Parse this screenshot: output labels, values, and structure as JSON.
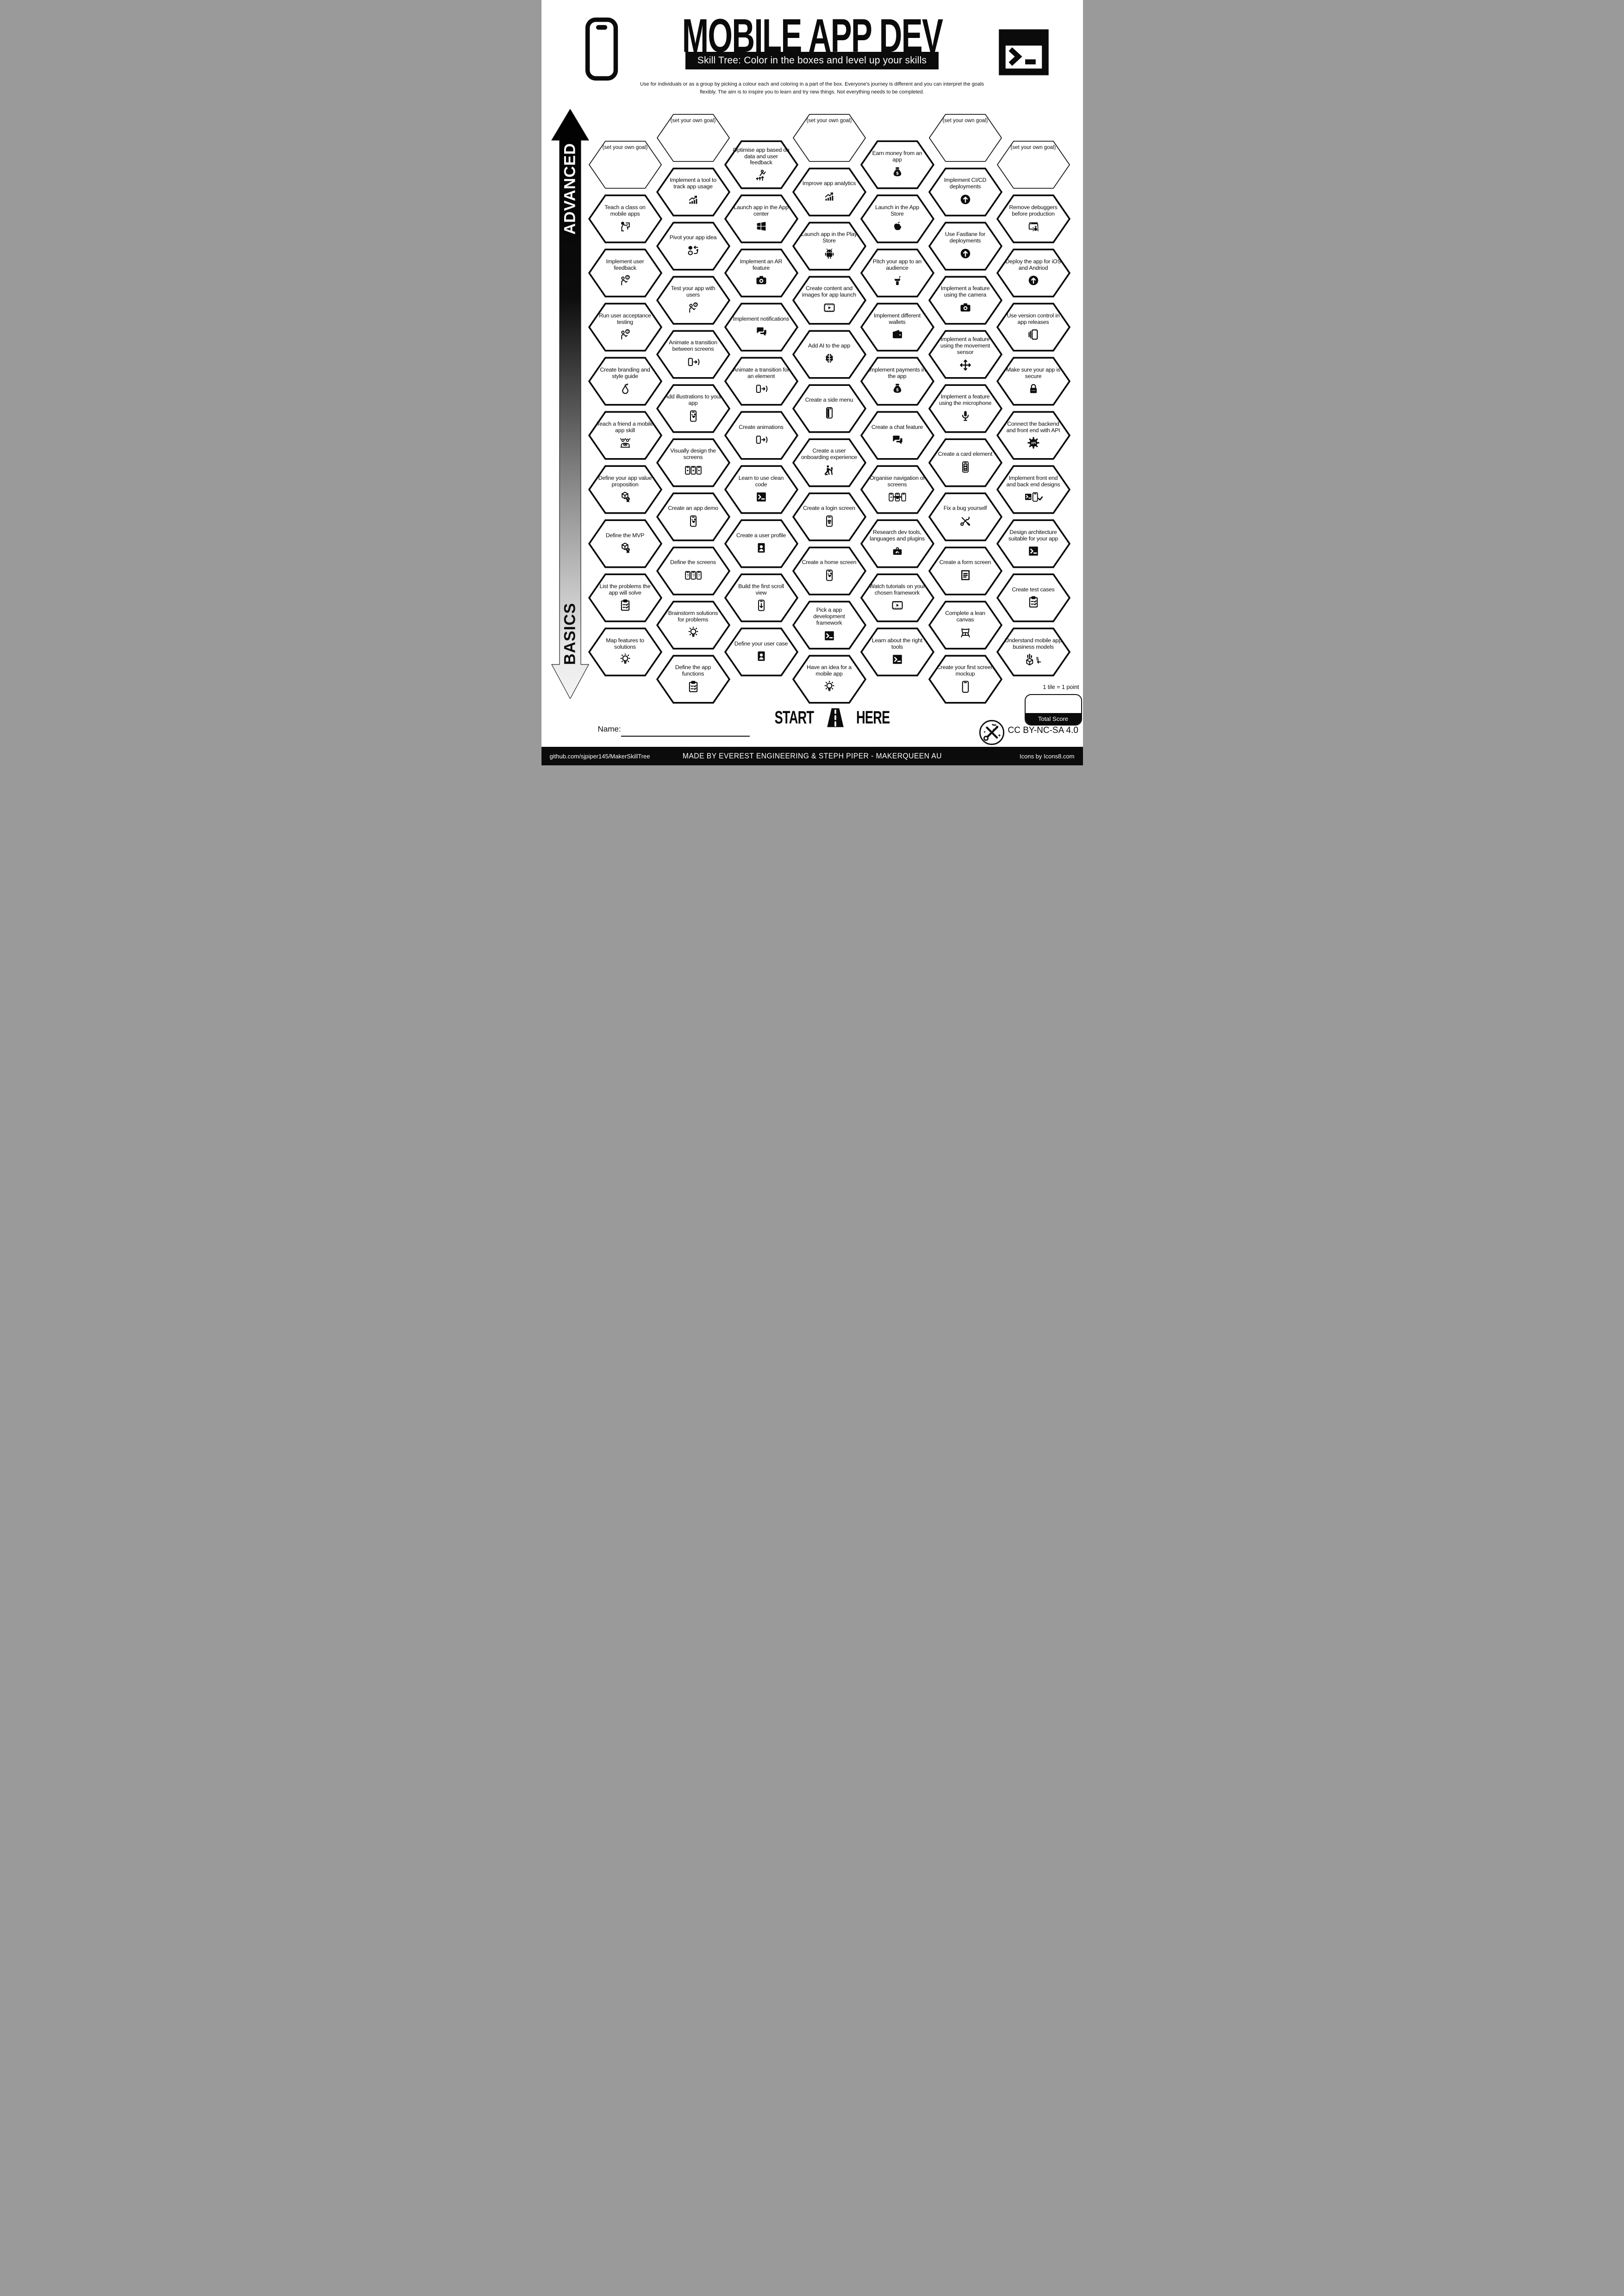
{
  "page": {
    "title": "MOBILE APP DEV",
    "subtitle": "Skill Tree:  Color in the boxes and level up your skills",
    "intro": "Use for individuals or as a group by picking a colour each and coloring in a part of the box.  Everyone's journey is different and you can interpret the goals flexibly.  The aim is to inspire you to learn and try new things. Not everything needs to be completed."
  },
  "axis": {
    "advanced_label": "ADVANCED",
    "basics_label": "BASICS"
  },
  "start_marker": {
    "start": "START",
    "here": "HERE"
  },
  "name_field": {
    "label": "Name:"
  },
  "scoring": {
    "tile_note": "1 tile = 1 point",
    "total_score_label": "Total Score"
  },
  "license": {
    "cc": "CC BY-NC-SA 4.0"
  },
  "footer": {
    "left": "github.com/sjpiper145/MakerSkillTree",
    "center": "MADE BY EVEREST ENGINEERING & STEPH PIPER  -  MAKERQUEEN AU",
    "right": "Icons by Icons8.com"
  },
  "colors": {
    "ink": "#0b0b0b",
    "paper": "#ffffff"
  },
  "hexagons": [
    {
      "col": 0,
      "row": 0,
      "goal": true,
      "label": "(set your own goal)",
      "icon": null
    },
    {
      "col": 0,
      "row": 1,
      "label": "Teach a class on mobile apps",
      "icon": "person-presenting"
    },
    {
      "col": 0,
      "row": 2,
      "label": "Implement user feedback",
      "icon": "person-question"
    },
    {
      "col": 0,
      "row": 3,
      "label": "Run user acceptance testing",
      "icon": "person-question"
    },
    {
      "col": 0,
      "row": 4,
      "label": "Create branding and style guide",
      "icon": "pear"
    },
    {
      "col": 0,
      "row": 5,
      "label": "Teach a friend a mobile app skill",
      "icon": "people-laptop"
    },
    {
      "col": 0,
      "row": 6,
      "label": "Define your app value proposition",
      "icon": "cube-badge"
    },
    {
      "col": 0,
      "row": 7,
      "label": "Define the MVP",
      "icon": "cube-badge"
    },
    {
      "col": 0,
      "row": 8,
      "label": "List the problems the app will solve",
      "icon": "clipboard-check"
    },
    {
      "col": 0,
      "row": 9,
      "label": "Map features to solutions",
      "icon": "lightbulb"
    },
    {
      "col": 1,
      "row": 0,
      "goal": true,
      "label": "(set your own goal)",
      "icon": null
    },
    {
      "col": 1,
      "row": 1,
      "label": "Implement a tool to track app usage",
      "icon": "chart-up"
    },
    {
      "col": 1,
      "row": 2,
      "label": "Pivot your app idea",
      "icon": "cubes-swap"
    },
    {
      "col": 1,
      "row": 3,
      "label": "Test your app with users",
      "icon": "person-question"
    },
    {
      "col": 1,
      "row": 4,
      "label": "Animate a transition between screens",
      "icon": "phone-transition"
    },
    {
      "col": 1,
      "row": 5,
      "label": "Add illustrations to your app",
      "icon": "phone-hearts"
    },
    {
      "col": 1,
      "row": 6,
      "label": "Visually design the screens",
      "icon": "phones-three"
    },
    {
      "col": 1,
      "row": 7,
      "label": "Create an app demo",
      "icon": "phone-hearts"
    },
    {
      "col": 1,
      "row": 8,
      "label": "Define the screens",
      "icon": "phones-question"
    },
    {
      "col": 1,
      "row": 9,
      "label": "Brainstorm solutions for problems",
      "icon": "lightbulb"
    },
    {
      "col": 1,
      "row": 10,
      "label": "Define the app functions",
      "icon": "clipboard-check"
    },
    {
      "col": 2,
      "row": 0,
      "label": "Optimise app based on data and user feedback",
      "icon": "person-levelup"
    },
    {
      "col": 2,
      "row": 1,
      "label": "Launch app in the App center",
      "icon": "windows"
    },
    {
      "col": 2,
      "row": 2,
      "label": "Implement an AR feature",
      "icon": "camera"
    },
    {
      "col": 2,
      "row": 3,
      "label": "Implement notifications",
      "icon": "chat-filled"
    },
    {
      "col": 2,
      "row": 4,
      "label": "Animate a transition for an element",
      "icon": "phone-transition"
    },
    {
      "col": 2,
      "row": 5,
      "label": "Create animations",
      "icon": "phone-transition"
    },
    {
      "col": 2,
      "row": 6,
      "label": "Learn to use clean code",
      "icon": "terminal-window"
    },
    {
      "col": 2,
      "row": 7,
      "label": "Create a user profile",
      "icon": "person-card"
    },
    {
      "col": 2,
      "row": 8,
      "label": "Build the first scroll view",
      "icon": "phone-scroll"
    },
    {
      "col": 2,
      "row": 9,
      "label": "Define your user case",
      "icon": "person-card"
    },
    {
      "col": 3,
      "row": 0,
      "goal": true,
      "label": "(set your own goal)",
      "icon": null
    },
    {
      "col": 3,
      "row": 1,
      "label": "Improve app analytics",
      "icon": "chart-up"
    },
    {
      "col": 3,
      "row": 2,
      "label": "Launch app in the Play Store",
      "icon": "android"
    },
    {
      "col": 3,
      "row": 3,
      "label": "Create content and images for app launch",
      "icon": "video-frame"
    },
    {
      "col": 3,
      "row": 4,
      "label": "Add AI to the app",
      "icon": "brain"
    },
    {
      "col": 3,
      "row": 5,
      "label": "Create a side menu",
      "icon": "phone-menu"
    },
    {
      "col": 3,
      "row": 6,
      "label": "Create a user onboarding experience",
      "icon": "person-onboarding"
    },
    {
      "col": 3,
      "row": 7,
      "label": "Create a login screen",
      "icon": "phone-form"
    },
    {
      "col": 3,
      "row": 8,
      "label": "Create a home screen",
      "icon": "phone-hearts"
    },
    {
      "col": 3,
      "row": 9,
      "label": "Pick a app development framework",
      "icon": "terminal-window"
    },
    {
      "col": 3,
      "row": 10,
      "label": "Have an idea for a mobile app",
      "icon": "lightbulb"
    },
    {
      "col": 4,
      "row": 0,
      "label": "Earn money from an app",
      "icon": "money-bag"
    },
    {
      "col": 4,
      "row": 1,
      "label": "Launch in the App Store",
      "icon": "apple"
    },
    {
      "col": 4,
      "row": 2,
      "label": "Pitch your app to an audience",
      "icon": "podium"
    },
    {
      "col": 4,
      "row": 3,
      "label": "Implement different wallets",
      "icon": "wallet"
    },
    {
      "col": 4,
      "row": 4,
      "label": "Implement payments in the app",
      "icon": "money-bag"
    },
    {
      "col": 4,
      "row": 5,
      "label": "Create a chat feature",
      "icon": "chat-filled"
    },
    {
      "col": 4,
      "row": 6,
      "label": "Organise navigation of screens",
      "icon": "phones-nav"
    },
    {
      "col": 4,
      "row": 7,
      "label": "Research dev tools, languages and plugins",
      "icon": "toolbox"
    },
    {
      "col": 4,
      "row": 8,
      "label": "Watch tutorials on your chosen framework",
      "icon": "video-frame"
    },
    {
      "col": 4,
      "row": 9,
      "label": "Learn about the right tools",
      "icon": "terminal-window"
    },
    {
      "col": 5,
      "row": 0,
      "goal": true,
      "label": "(set your own goal)",
      "icon": null
    },
    {
      "col": 5,
      "row": 1,
      "label": "Implement CI/CD deployments",
      "icon": "circle-arrow-up"
    },
    {
      "col": 5,
      "row": 2,
      "label": "Use Fastlane for deployments",
      "icon": "circle-arrow-up"
    },
    {
      "col": 5,
      "row": 3,
      "label": "Implement a feature using the camera",
      "icon": "camera"
    },
    {
      "col": 5,
      "row": 4,
      "label": "Implement a feature using the movement sensor",
      "icon": "move-arrows"
    },
    {
      "col": 5,
      "row": 5,
      "label": "Implement a feature using the microphone",
      "icon": "microphone"
    },
    {
      "col": 5,
      "row": 6,
      "label": "Create a card element",
      "icon": "phone-cards"
    },
    {
      "col": 5,
      "row": 7,
      "label": "Fix a bug yourself",
      "icon": "tools-crossed"
    },
    {
      "col": 5,
      "row": 8,
      "label": "Create a form screen",
      "icon": "doc-lines"
    },
    {
      "col": 5,
      "row": 9,
      "label": "Complete a lean canvas",
      "icon": "easel"
    },
    {
      "col": 5,
      "row": 10,
      "label": "Create your first screen mockup",
      "icon": "phone-outline"
    },
    {
      "col": 6,
      "row": 0,
      "goal": true,
      "label": "(set your own goal)",
      "icon": null
    },
    {
      "col": 6,
      "row": 1,
      "label": "Remove debuggers before production",
      "icon": "window-bug"
    },
    {
      "col": 6,
      "row": 2,
      "label": "Deploy the app for iOS and Andriod",
      "icon": "circle-arrow-up"
    },
    {
      "col": 6,
      "row": 3,
      "label": "Use version control in app releases",
      "icon": "phone-stack"
    },
    {
      "col": 6,
      "row": 4,
      "label": "Make sure your app is secure",
      "icon": "padlock"
    },
    {
      "col": 6,
      "row": 5,
      "label": "Connect the backend and front end with API",
      "icon": "gear-api"
    },
    {
      "col": 6,
      "row": 6,
      "label": "Implement front end and back end designs",
      "icon": "terminal-phone-check"
    },
    {
      "col": 6,
      "row": 7,
      "label": "Design architecture suitable for your app",
      "icon": "terminal-window"
    },
    {
      "col": 6,
      "row": 8,
      "label": "Create test cases",
      "icon": "clipboard-check"
    },
    {
      "col": 6,
      "row": 9,
      "label": "Understand mobile app business models",
      "icon": "box-analytics-dollar"
    }
  ]
}
